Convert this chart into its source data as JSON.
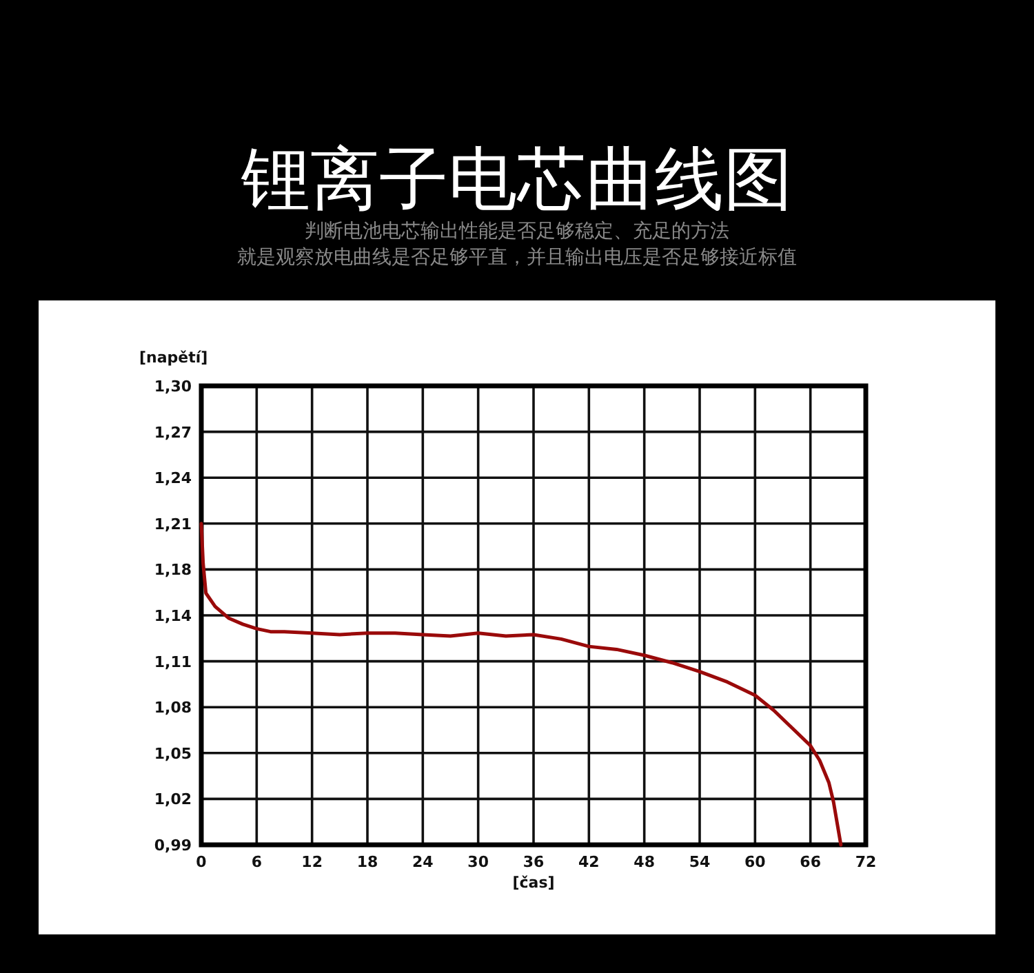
{
  "chart_data": {
    "type": "line",
    "title": "锂离子电芯曲线图",
    "subtitle": "判断电池电芯输出性能是否足够稳定、充足的方法",
    "annotations": [
      "就是观察放电曲线是否足够平直，并且输出电压是否足够接近标值"
    ],
    "xlabel": "[čas]",
    "ylabel": "[napětí]",
    "x": [
      0,
      0.2,
      0.5,
      1.5,
      3,
      4.5,
      6,
      7.5,
      9,
      12,
      15,
      18,
      21,
      24,
      27,
      30,
      33,
      36,
      39,
      42,
      45,
      48,
      51,
      54,
      57,
      60,
      62,
      64,
      66,
      67,
      68,
      68.5,
      69.3
    ],
    "values": [
      1.207,
      1.18,
      1.16,
      1.151,
      1.143,
      1.139,
      1.136,
      1.134,
      1.134,
      1.133,
      1.132,
      1.133,
      1.133,
      1.132,
      1.131,
      1.133,
      1.131,
      1.132,
      1.129,
      1.124,
      1.122,
      1.118,
      1.113,
      1.107,
      1.1,
      1.091,
      1.081,
      1.069,
      1.057,
      1.047,
      1.032,
      1.019,
      0.99
    ],
    "color": "#9a0a0a",
    "xlim": [
      0,
      72
    ],
    "ylim": [
      0.99,
      1.3
    ],
    "xticks": [
      0,
      6,
      12,
      18,
      24,
      30,
      36,
      42,
      48,
      54,
      60,
      66,
      72
    ],
    "yticks": [
      {
        "value": 0.99,
        "label": "0,99"
      },
      {
        "value": 1.021,
        "label": "1,02"
      },
      {
        "value": 1.052,
        "label": "1,05"
      },
      {
        "value": 1.083,
        "label": "1,08"
      },
      {
        "value": 1.114,
        "label": "1,11"
      },
      {
        "value": 1.145,
        "label": "1,14"
      },
      {
        "value": 1.176,
        "label": "1,18"
      },
      {
        "value": 1.207,
        "label": "1,21"
      },
      {
        "value": 1.238,
        "label": "1,24"
      },
      {
        "value": 1.269,
        "label": "1,27"
      },
      {
        "value": 1.3,
        "label": "1,30"
      }
    ],
    "grid": true,
    "line_style": "solid"
  }
}
